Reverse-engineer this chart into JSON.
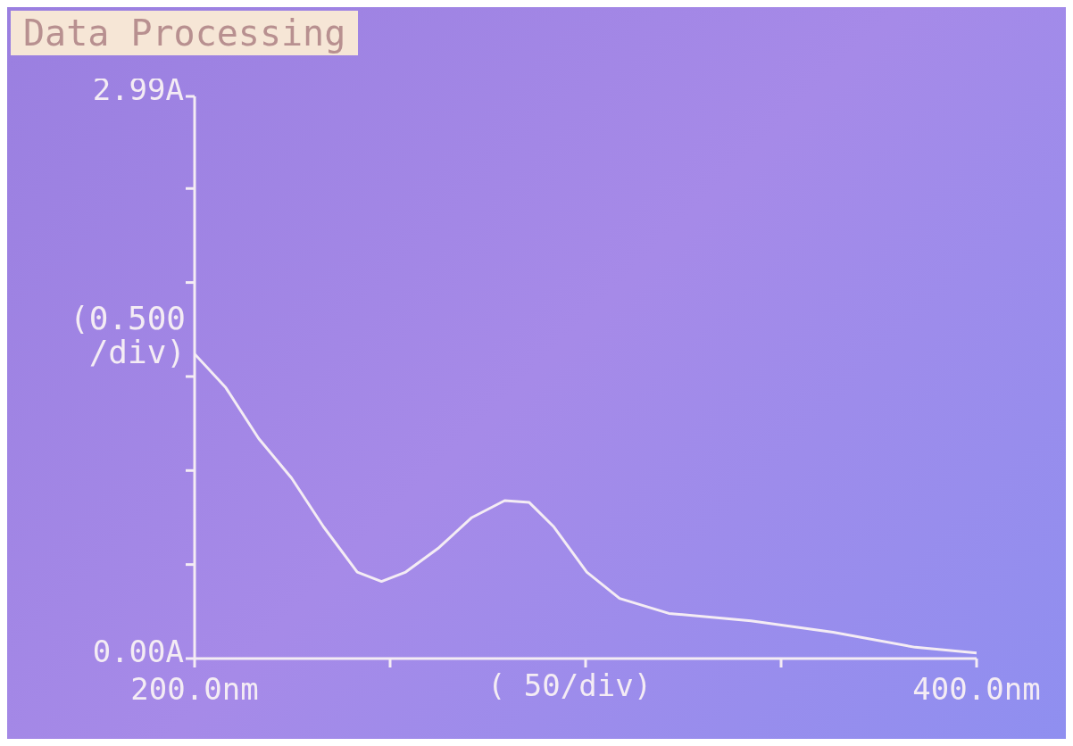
{
  "chart_data": {
    "type": "line",
    "title": "Data Processing",
    "xlabel": "( 50/div)",
    "ylabel": "(0.500 /div)",
    "x": [
      200,
      208,
      216.4,
      224.8,
      233,
      241.6,
      247.8,
      254,
      262.5,
      270.9,
      279.3,
      285.6,
      291.9,
      300.3,
      308.7,
      321.3,
      342.3,
      363.3,
      384.3,
      400
    ],
    "series": [
      {
        "color": "#f4ecf4",
        "values": [
          1.62,
          1.44,
          1.17,
          0.96,
          0.7,
          0.46,
          0.41,
          0.46,
          0.59,
          0.75,
          0.84,
          0.83,
          0.7,
          0.46,
          0.32,
          0.24,
          0.2,
          0.14,
          0.06,
          0.03
        ]
      }
    ],
    "xlim": [
      200,
      400
    ],
    "xticks": [
      {
        "value": 200,
        "label": "200.0nm"
      },
      {
        "value": 250,
        "label": null
      },
      {
        "value": 300,
        "label": null
      },
      {
        "value": 350,
        "label": null
      },
      {
        "value": 400,
        "label": "400.0nm"
      }
    ],
    "ylim": [
      0,
      2.99
    ],
    "yticks": [
      {
        "value": 0,
        "label": "0.00A"
      },
      {
        "value": 0.5,
        "label": null
      },
      {
        "value": 1,
        "label": null
      },
      {
        "value": 1.5,
        "label": null
      },
      {
        "value": 2,
        "label": null
      },
      {
        "value": 2.5,
        "label": null
      },
      {
        "value": 2.99,
        "label": "2.99A"
      }
    ],
    "grid": false,
    "legend": false,
    "marker": "none",
    "line_style": "solid"
  }
}
